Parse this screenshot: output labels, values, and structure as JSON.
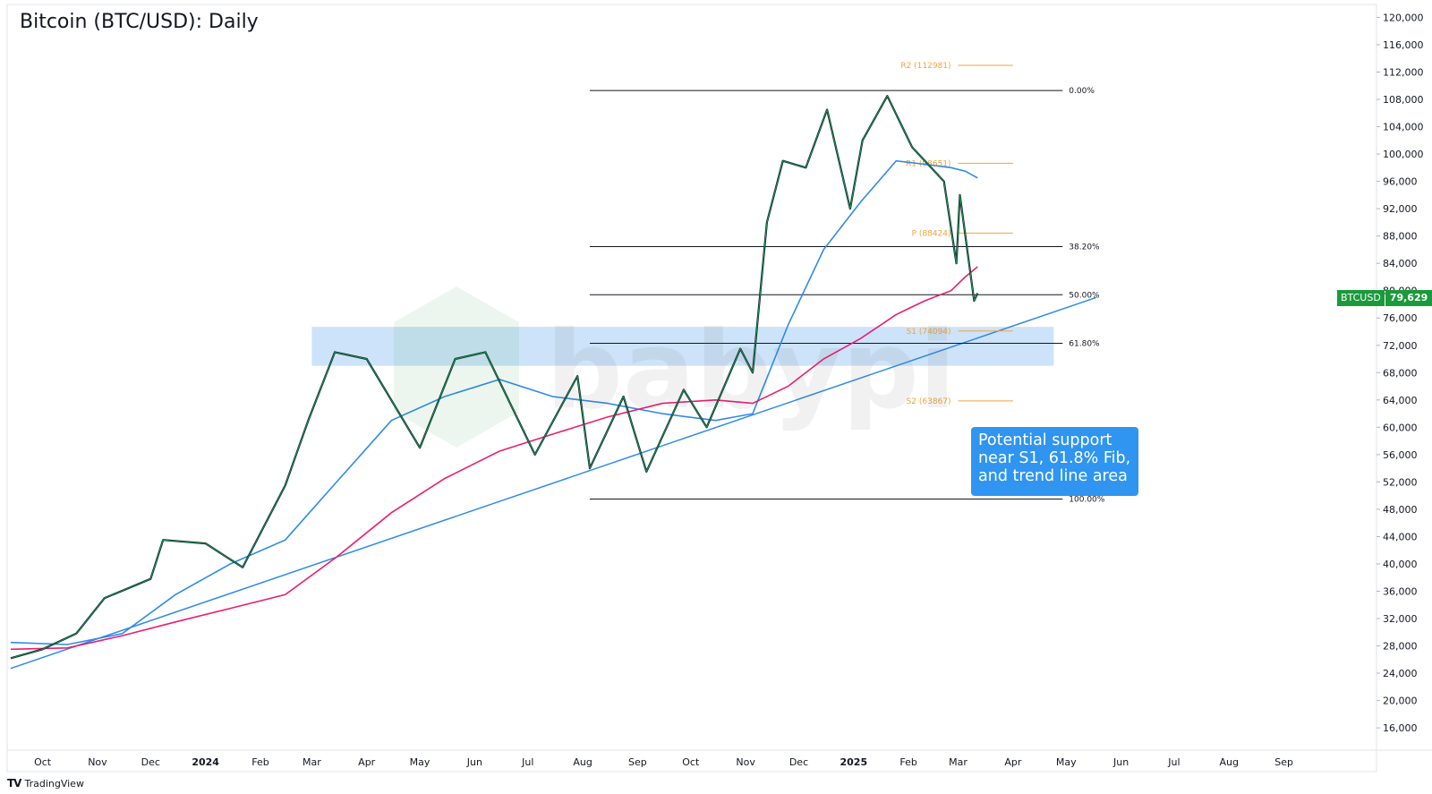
{
  "title": "Bitcoin (BTC/USD): Daily",
  "footer": {
    "brand": "TradingView"
  },
  "watermark": "babypips",
  "price_tag": {
    "symbol": "BTCUSD",
    "value": "79,629",
    "color": "#1a9a3b"
  },
  "callout": {
    "text": "Potential support near S1, 61.8% Fib, and trend line area",
    "color": "#2f95f0"
  },
  "colors": {
    "sma_fast": "#2f8ae8",
    "sma_slow": "#e91e73",
    "pivots": "#f0a33c",
    "support_zone": "#bcd9f7",
    "candle_up": "#14ab5c",
    "candle_down": "#131722"
  },
  "chart_data": {
    "type": "line",
    "title": "Bitcoin (BTC/USD): Daily",
    "y_axis": {
      "position": "right",
      "ylim": [
        13000,
        121500
      ],
      "ticks": [
        "120,000",
        "116,000",
        "112,000",
        "108,000",
        "104,000",
        "100,000",
        "96,000",
        "92,000",
        "88,000",
        "84,000",
        "80,000",
        "76,000",
        "72,000",
        "68,000",
        "64,000",
        "60,000",
        "56,000",
        "52,000",
        "48,000",
        "44,000",
        "40,000",
        "36,000",
        "32,000",
        "28,000",
        "24,000",
        "20,000",
        "16,000"
      ]
    },
    "x_axis": {
      "ticks": [
        "Oct",
        "Nov",
        "Dec",
        "2024",
        "Feb",
        "Mar",
        "Apr",
        "May",
        "Jun",
        "Jul",
        "Aug",
        "Sep",
        "Oct",
        "Nov",
        "Dec",
        "2025",
        "Feb",
        "Mar",
        "Apr",
        "May",
        "Jun",
        "Jul",
        "Aug",
        "Sep"
      ],
      "bold_ticks": [
        "2024",
        "2025"
      ]
    },
    "grid": false,
    "price_path": {
      "x": [
        "2023-09-13",
        "2023-10-01",
        "2023-10-20",
        "2023-11-05",
        "2023-12-01",
        "2023-12-08",
        "2024-01-01",
        "2024-01-22",
        "2024-02-15",
        "2024-02-28",
        "2024-03-14",
        "2024-04-01",
        "2024-05-01",
        "2024-05-21",
        "2024-06-07",
        "2024-07-05",
        "2024-07-29",
        "2024-08-05",
        "2024-08-24",
        "2024-09-06",
        "2024-09-27",
        "2024-10-10",
        "2024-10-29",
        "2024-11-05",
        "2024-11-13",
        "2024-11-22",
        "2024-12-05",
        "2024-12-17",
        "2024-12-30",
        "2025-01-06",
        "2025-01-20",
        "2025-02-03",
        "2025-02-21",
        "2025-02-28",
        "2025-03-02",
        "2025-03-10",
        "2025-03-12"
      ],
      "y": [
        26200,
        27500,
        29800,
        35000,
        37800,
        43500,
        43000,
        39500,
        51500,
        61000,
        71000,
        70000,
        57000,
        70000,
        71000,
        56000,
        67500,
        54000,
        64500,
        53500,
        65500,
        60000,
        71500,
        68000,
        90000,
        99000,
        98000,
        106500,
        92000,
        102000,
        108500,
        101000,
        96000,
        84000,
        94000,
        78500,
        79629
      ]
    },
    "series": [
      {
        "name": "",
        "color": "#2f8ae8",
        "x": [
          "2023-09-13",
          "2023-10-15",
          "2023-11-15",
          "2023-12-15",
          "2024-01-15",
          "2024-02-15",
          "2024-03-15",
          "2024-04-15",
          "2024-05-15",
          "2024-06-15",
          "2024-07-15",
          "2024-08-15",
          "2024-09-15",
          "2024-10-15",
          "2024-11-05",
          "2024-11-25",
          "2024-12-15",
          "2025-01-05",
          "2025-01-25",
          "2025-02-10",
          "2025-02-25",
          "2025-03-05",
          "2025-03-12"
        ],
        "y": [
          28500,
          28200,
          29800,
          35500,
          40000,
          43500,
          52000,
          61000,
          64500,
          67000,
          64500,
          63500,
          62000,
          61000,
          62000,
          75000,
          86000,
          93000,
          99000,
          98500,
          98000,
          97500,
          96500
        ]
      },
      {
        "name": "",
        "color": "#e91e73",
        "x": [
          "2023-09-13",
          "2023-10-15",
          "2023-11-15",
          "2023-12-15",
          "2024-01-15",
          "2024-02-15",
          "2024-03-15",
          "2024-04-15",
          "2024-05-15",
          "2024-06-15",
          "2024-07-15",
          "2024-08-15",
          "2024-09-15",
          "2024-10-15",
          "2024-11-05",
          "2024-11-25",
          "2024-12-15",
          "2025-01-05",
          "2025-01-25",
          "2025-02-10",
          "2025-02-25",
          "2025-03-05",
          "2025-03-12"
        ],
        "y": [
          27500,
          27700,
          29500,
          31500,
          33500,
          35500,
          41000,
          47500,
          52500,
          56500,
          59000,
          61500,
          63500,
          64000,
          63500,
          66000,
          70000,
          73000,
          76500,
          78500,
          80000,
          82000,
          83500
        ]
      }
    ],
    "trendline": {
      "x": [
        "2023-09-13",
        "2025-05-18"
      ],
      "y": [
        24700,
        79000
      ]
    },
    "support_zone": {
      "x": [
        "2024-03-01",
        "2025-04-24"
      ],
      "y": [
        69000,
        74700
      ]
    },
    "fibonacci": {
      "x_start": "2024-08-05",
      "x_end": "2025-04-29",
      "levels": [
        {
          "label": "0.00%",
          "y": 109300
        },
        {
          "label": "38.20%",
          "y": 86450
        },
        {
          "label": "50.00%",
          "y": 79400
        },
        {
          "label": "61.80%",
          "y": 72300
        },
        {
          "label": "100.00%",
          "y": 49500
        }
      ]
    },
    "pivots": {
      "x_start": "2025-03-01",
      "x_end": "2025-04-01",
      "levels": [
        {
          "label": "R2 (112981)",
          "y": 112981
        },
        {
          "label": "R1 (98651)",
          "y": 98651
        },
        {
          "label": "P (88424)",
          "y": 88424
        },
        {
          "label": "S1 (74094)",
          "y": 74094
        },
        {
          "label": "S2 (63867)",
          "y": 63867
        }
      ]
    }
  }
}
